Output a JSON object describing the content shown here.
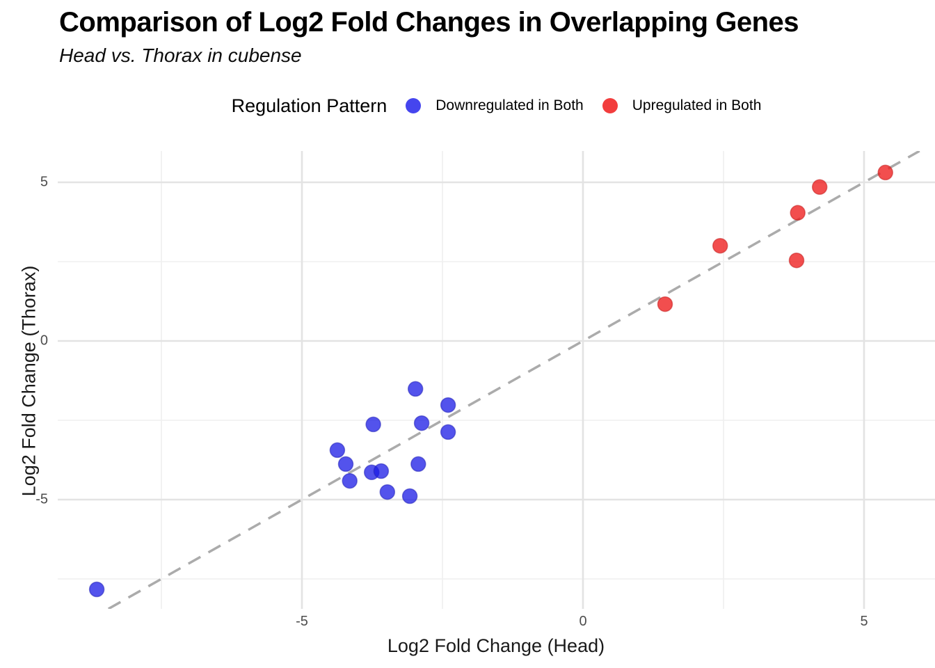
{
  "title": "Comparison of Log2 Fold Changes in Overlapping Genes",
  "subtitle": "Head vs. Thorax in cubense",
  "legend": {
    "title": "Regulation Pattern",
    "items": [
      {
        "label": "Downregulated in Both",
        "color": "#4545ee"
      },
      {
        "label": "Upregulated in Both",
        "color": "#f23d3d"
      }
    ]
  },
  "chart_data": {
    "type": "scatter",
    "title": "Comparison of Log2 Fold Changes in Overlapping Genes",
    "subtitle": "Head vs. Thorax in cubense",
    "xlabel": "Log2 Fold Change (Head)",
    "ylabel": "Log2 Fold Change (Thorax)",
    "xlim": [
      -9.35,
      6.25
    ],
    "ylim": [
      -8.45,
      6.1
    ],
    "x_ticks": [
      -5,
      0,
      5
    ],
    "y_ticks": [
      -5,
      0,
      5
    ],
    "x_minor_ticks": [
      -7.5,
      -2.5,
      2.5
    ],
    "y_minor_ticks": [
      -7.5,
      -2.5,
      2.5
    ],
    "grid": true,
    "legend_position": "top",
    "reference_line": {
      "type": "identity y=x",
      "style": "dashed",
      "color": "#ababab"
    },
    "series": [
      {
        "name": "Downregulated in Both",
        "color": "#1919e6",
        "fill_opacity": 0.75,
        "stroke_color": "#2222b8",
        "points": [
          [
            -8.65,
            -7.83
          ],
          [
            -2.98,
            -1.51
          ],
          [
            -2.4,
            -2.02
          ],
          [
            -3.73,
            -2.63
          ],
          [
            -2.87,
            -2.59
          ],
          [
            -2.4,
            -2.87
          ],
          [
            -4.37,
            -3.44
          ],
          [
            -4.22,
            -3.88
          ],
          [
            -2.93,
            -3.88
          ],
          [
            -3.76,
            -4.14
          ],
          [
            -3.59,
            -4.1
          ],
          [
            -4.15,
            -4.41
          ],
          [
            -3.48,
            -4.76
          ],
          [
            -3.08,
            -4.89
          ]
        ]
      },
      {
        "name": "Upregulated in Both",
        "color": "#ee1c1c",
        "fill_opacity": 0.78,
        "stroke_color": "#c21d1d",
        "points": [
          [
            1.46,
            1.16
          ],
          [
            2.44,
            3.0
          ],
          [
            3.8,
            2.54
          ],
          [
            3.82,
            4.04
          ],
          [
            4.21,
            4.85
          ],
          [
            5.38,
            5.31
          ]
        ]
      }
    ],
    "colors": {
      "background": "#ffffff",
      "grid_major": "#e3e3e3",
      "grid_minor": "#efefef",
      "tick_text": "#4d4d4d"
    }
  }
}
